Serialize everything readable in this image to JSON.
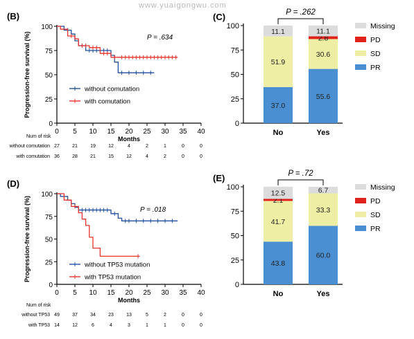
{
  "watermark": "www.yuaigongwu.com",
  "chart_data": [
    {
      "panel": "(B)",
      "type": "line",
      "ylabel": "Progression-free survival (%)",
      "xlabel": "Months",
      "xlim": [
        0,
        40
      ],
      "ylim": [
        0,
        100
      ],
      "xticks": [
        0,
        5,
        10,
        15,
        20,
        25,
        30,
        35,
        40
      ],
      "yticks": [
        0,
        25,
        50,
        75,
        100
      ],
      "pvalue": "P = .634",
      "legend": [
        "without comutation",
        "with comutation"
      ],
      "legend_colors": [
        "#1f4e9e",
        "#e8322a"
      ],
      "series": [
        {
          "name": "without comutation",
          "color": "#1f4e9e",
          "steps": [
            [
              0,
              100
            ],
            [
              2,
              96
            ],
            [
              4,
              92
            ],
            [
              5,
              85
            ],
            [
              6,
              80
            ],
            [
              8,
              75
            ],
            [
              12,
              75
            ],
            [
              15,
              70
            ],
            [
              16,
              63
            ],
            [
              17,
              52
            ],
            [
              27,
              52
            ]
          ],
          "censor": [
            3,
            7,
            9,
            10,
            11,
            13,
            14,
            18,
            20,
            22,
            24,
            26
          ]
        },
        {
          "name": "with comutation",
          "color": "#e8322a",
          "steps": [
            [
              0,
              100
            ],
            [
              1,
              97
            ],
            [
              3,
              90
            ],
            [
              5,
              87
            ],
            [
              6,
              80
            ],
            [
              9,
              78
            ],
            [
              12,
              72
            ],
            [
              15,
              68
            ],
            [
              33.5,
              68
            ]
          ],
          "censor": [
            4,
            7,
            8,
            10,
            11,
            13,
            14,
            16,
            18,
            19,
            20,
            21,
            22,
            23,
            24,
            25,
            26,
            27,
            28,
            29,
            30,
            31,
            32,
            33
          ]
        }
      ],
      "risk_table": {
        "header": "Num of risk",
        "rows": [
          {
            "label": "without comutation",
            "values": [
              "27",
              "21",
              "19",
              "12",
              "4",
              "2",
              "1",
              "0",
              "0"
            ]
          },
          {
            "label": "with comutation",
            "values": [
              "36",
              "28",
              "21",
              "15",
              "12",
              "4",
              "2",
              "0",
              "0"
            ]
          }
        ]
      }
    },
    {
      "panel": "(C)",
      "type": "bar",
      "stacked": true,
      "pvalue": "P = .262",
      "categories": [
        "No",
        "Yes"
      ],
      "ylim": [
        0,
        100
      ],
      "yticks": [
        0,
        25,
        50,
        75,
        100
      ],
      "series": [
        {
          "name": "PR",
          "color": "#4a8fd1",
          "values": [
            37.0,
            55.6
          ],
          "labels": [
            "37.0",
            "55.6"
          ]
        },
        {
          "name": "SD",
          "color": "#eeeea4",
          "values": [
            51.9,
            30.6
          ],
          "labels": [
            "51.9",
            "30.6"
          ]
        },
        {
          "name": "PD",
          "color": "#e0221d",
          "values": [
            0,
            2.8
          ],
          "labels": [
            "",
            "2.8"
          ]
        },
        {
          "name": "Missing",
          "color": "#dcdcdc",
          "values": [
            11.1,
            11.1
          ],
          "labels": [
            "11.1",
            "11.1"
          ]
        }
      ],
      "legend": [
        "Missing",
        "PD",
        "SD",
        "PR"
      ]
    },
    {
      "panel": "(D)",
      "type": "line",
      "ylabel": "Progression-free survival (%)",
      "xlabel": "Months",
      "xlim": [
        0,
        40
      ],
      "ylim": [
        0,
        100
      ],
      "xticks": [
        0,
        5,
        10,
        15,
        20,
        25,
        30,
        35,
        40
      ],
      "yticks": [
        0,
        25,
        50,
        75,
        100
      ],
      "pvalue": "P = .018",
      "legend": [
        "without TP53 mutation",
        "with TP53 mutation"
      ],
      "legend_colors": [
        "#1f4e9e",
        "#e8322a"
      ],
      "series": [
        {
          "name": "without TP53 mutation",
          "color": "#1f4e9e",
          "steps": [
            [
              0,
              100
            ],
            [
              1,
              97
            ],
            [
              3,
              93
            ],
            [
              4,
              89
            ],
            [
              5,
              85
            ],
            [
              6,
              82
            ],
            [
              15,
              78
            ],
            [
              17,
              73
            ],
            [
              18,
              70
            ],
            [
              33.5,
              70
            ]
          ],
          "censor": [
            2,
            7,
            8,
            9,
            10,
            11,
            12,
            13,
            14,
            16,
            19,
            20,
            22,
            24,
            26,
            28,
            30,
            32
          ]
        },
        {
          "name": "with TP53 mutation",
          "color": "#e8322a",
          "steps": [
            [
              0,
              100
            ],
            [
              2,
              93
            ],
            [
              4,
              86
            ],
            [
              6,
              79
            ],
            [
              7,
              72
            ],
            [
              8,
              65
            ],
            [
              9,
              52
            ],
            [
              10,
              40
            ],
            [
              12,
              31
            ],
            [
              23,
              31
            ]
          ],
          "censor": [
            5,
            22.5
          ]
        }
      ],
      "risk_table": {
        "header": "Num of risk",
        "rows": [
          {
            "label": "without TP53",
            "values": [
              "49",
              "37",
              "34",
              "23",
              "13",
              "5",
              "2",
              "0",
              "0"
            ]
          },
          {
            "label": "with TP53",
            "values": [
              "14",
              "12",
              "6",
              "4",
              "3",
              "1",
              "1",
              "0",
              "0"
            ]
          }
        ]
      }
    },
    {
      "panel": "(E)",
      "type": "bar",
      "stacked": true,
      "pvalue": "P = .72",
      "categories": [
        "No",
        "Yes"
      ],
      "ylim": [
        0,
        100
      ],
      "yticks": [
        0,
        25,
        50,
        75,
        100
      ],
      "series": [
        {
          "name": "PR",
          "color": "#4a8fd1",
          "values": [
            43.8,
            60.0
          ],
          "labels": [
            "43.8",
            "60.0"
          ]
        },
        {
          "name": "SD",
          "color": "#eeeea4",
          "values": [
            41.7,
            33.3
          ],
          "labels": [
            "41.7",
            "33.3"
          ]
        },
        {
          "name": "PD",
          "color": "#e0221d",
          "values": [
            2.1,
            0
          ],
          "labels": [
            "2.1",
            ""
          ]
        },
        {
          "name": "Missing",
          "color": "#dcdcdc",
          "values": [
            12.5,
            6.7
          ],
          "labels": [
            "12.5",
            "6.7"
          ]
        }
      ],
      "legend": [
        "Missing",
        "PD",
        "SD",
        "PR"
      ]
    }
  ]
}
